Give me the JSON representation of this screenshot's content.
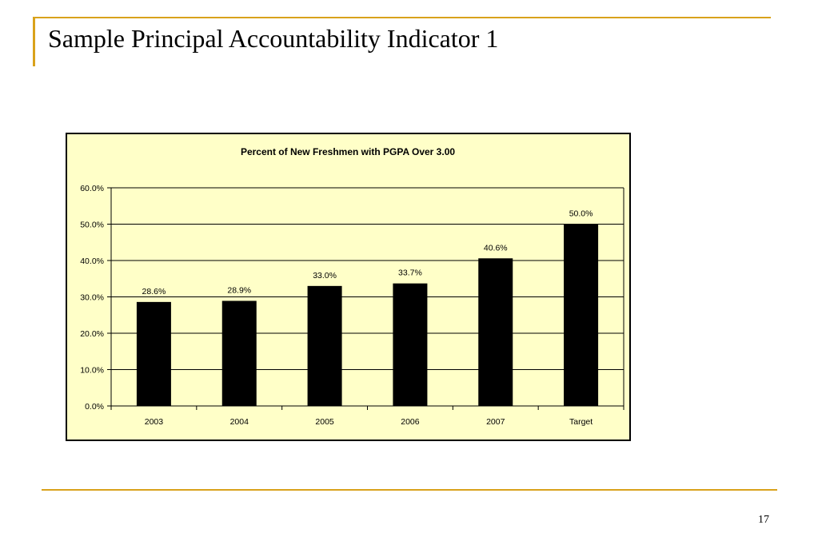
{
  "slide": {
    "title": "Sample Principal Accountability Indicator 1",
    "page_number": "17"
  },
  "colors": {
    "accent": "#D9A21B",
    "chart_background": "#FFFFC8",
    "bar": "#000000"
  },
  "chart_data": {
    "type": "bar",
    "title": "Percent of New Freshmen with PGPA Over 3.00",
    "xlabel": "",
    "ylabel": "",
    "categories": [
      "2003",
      "2004",
      "2005",
      "2006",
      "2007",
      "Target"
    ],
    "values": [
      28.6,
      28.9,
      33.0,
      33.7,
      40.6,
      50.0
    ],
    "data_labels": [
      "28.6%",
      "28.9%",
      "33.0%",
      "33.7%",
      "40.6%",
      "50.0%"
    ],
    "ylim": [
      0,
      60
    ],
    "yticks": [
      0,
      10,
      20,
      30,
      40,
      50,
      60
    ],
    "ytick_labels": [
      "0.0%",
      "10.0%",
      "20.0%",
      "30.0%",
      "40.0%",
      "50.0%",
      "60.0%"
    ],
    "grid": true,
    "legend": "none"
  }
}
